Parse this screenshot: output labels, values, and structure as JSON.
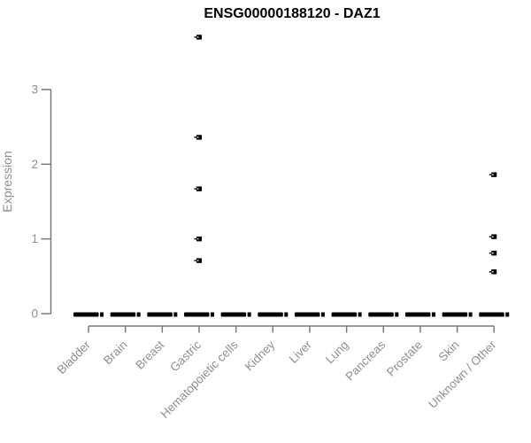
{
  "chart_data": {
    "type": "boxplot",
    "title": "ENSG00000188120 - DAZ1",
    "xlabel": "",
    "ylabel": "Expression",
    "ylim": [
      0,
      3
    ],
    "yticks": [
      0,
      1,
      2,
      3
    ],
    "grid": false,
    "legend": "none",
    "categories": [
      "Bladder",
      "Brain",
      "Breast",
      "Gastric",
      "Hematopoietic cells",
      "Kidney",
      "Liver",
      "Lung",
      "Pancreas",
      "Prostate",
      "Skin",
      "Unknown / Other"
    ],
    "medians": [
      0,
      0,
      0,
      0,
      0,
      0,
      0,
      0,
      0,
      0,
      0,
      0
    ],
    "outliers": [
      {
        "category": "Gastric",
        "values": [
          3.7,
          2.36,
          1.67,
          1.0,
          0.71
        ]
      },
      {
        "category": "Unknown / Other",
        "values": [
          1.86,
          1.03,
          0.81,
          0.56
        ]
      }
    ],
    "colors": {
      "box": "#000000",
      "axis": "#7a7a7a",
      "text": "#8f8f8f",
      "title": "#000000",
      "background": "#ffffff"
    }
  }
}
